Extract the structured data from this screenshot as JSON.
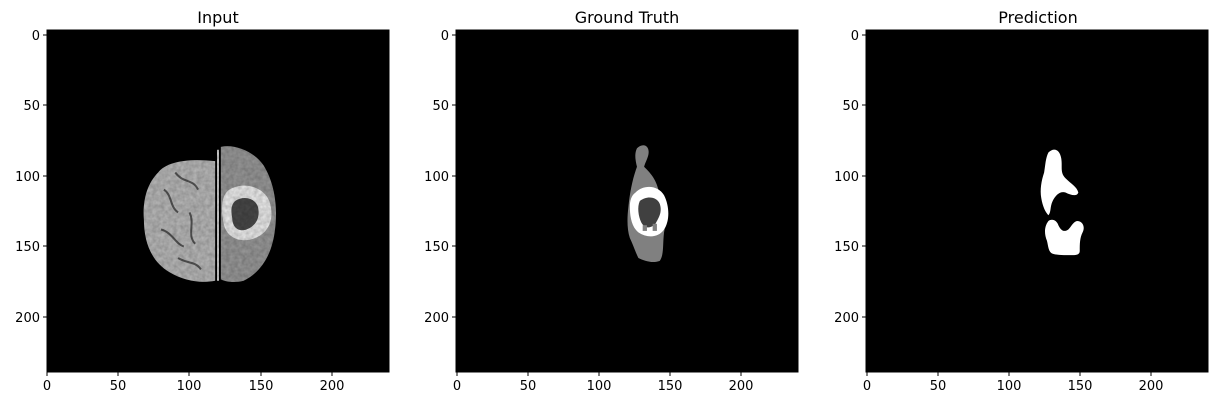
{
  "figure": {
    "panels": [
      {
        "title": "Input",
        "x_ticks": [
          "0",
          "50",
          "100",
          "150",
          "200"
        ],
        "y_ticks": [
          "0",
          "50",
          "100",
          "150",
          "200"
        ]
      },
      {
        "title": "Ground Truth",
        "x_ticks": [
          "0",
          "50",
          "100",
          "150",
          "200"
        ],
        "y_ticks": [
          "0",
          "50",
          "100",
          "150",
          "200"
        ]
      },
      {
        "title": "Prediction",
        "x_ticks": [
          "0",
          "50",
          "100",
          "150",
          "200"
        ],
        "y_ticks": [
          "0",
          "50",
          "100",
          "150",
          "200"
        ]
      }
    ],
    "colors": {
      "background": "#000000",
      "brain_light": "#bdbdbd",
      "brain_mid": "#9a9a9a",
      "lesion": "#ffffff",
      "edema": "#808080",
      "core": "#404040"
    }
  }
}
